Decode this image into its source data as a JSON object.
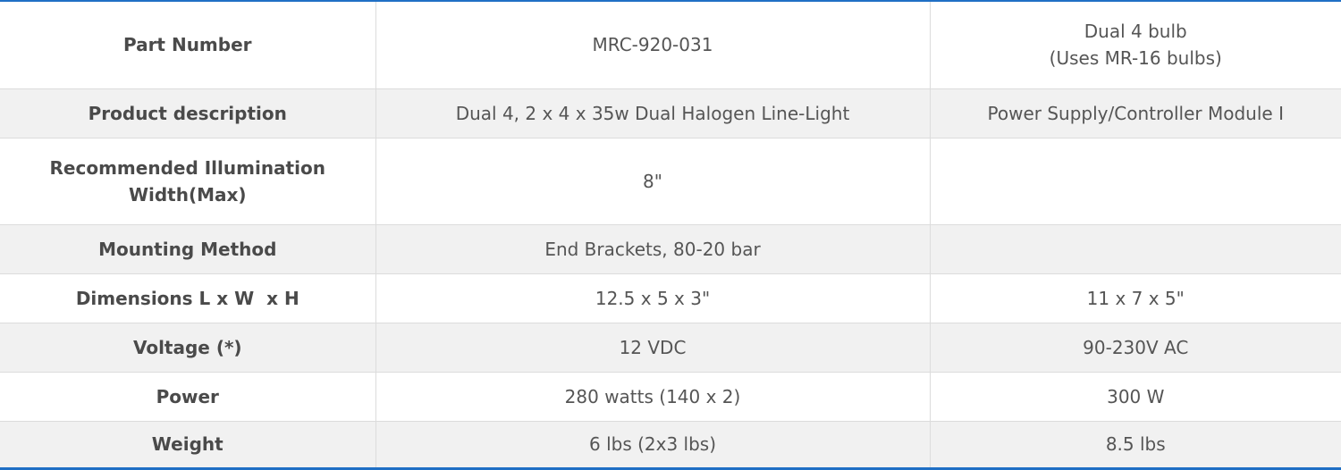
{
  "rows": [
    {
      "label": "Part Number",
      "col1": "MRC-920-031",
      "col2_line1": "Dual 4 bulb",
      "col2_line2": "(Uses MR-16 bulbs)"
    },
    {
      "label": "Product description",
      "col1": "Dual 4, 2 x 4 x 35w Dual Halogen Line-Light",
      "col2": "Power Supply/Controller Module I"
    },
    {
      "label_line1": "Recommended Illumination",
      "label_line2": "Width(Max)",
      "col1": "8\"",
      "col2": ""
    },
    {
      "label": "Mounting Method",
      "col1": "End Brackets, 80-20 bar",
      "col2": ""
    },
    {
      "label": "Dimensions L x W  x H",
      "col1": "12.5 x 5 x 3\"",
      "col2": "11 x 7 x 5\""
    },
    {
      "label": "Voltage (*)",
      "col1": "12 VDC",
      "col2": "90-230V AC"
    },
    {
      "label": "Power",
      "col1": "280 watts (140 x 2)",
      "col2": "300 W"
    },
    {
      "label": "Weight",
      "col1": "6 lbs (2x3 lbs)",
      "col2": "8.5 lbs"
    }
  ],
  "colors": {
    "accent_border": "#1f6fc5",
    "row_alt_bg": "#f1f1f1",
    "text": "#555555"
  }
}
